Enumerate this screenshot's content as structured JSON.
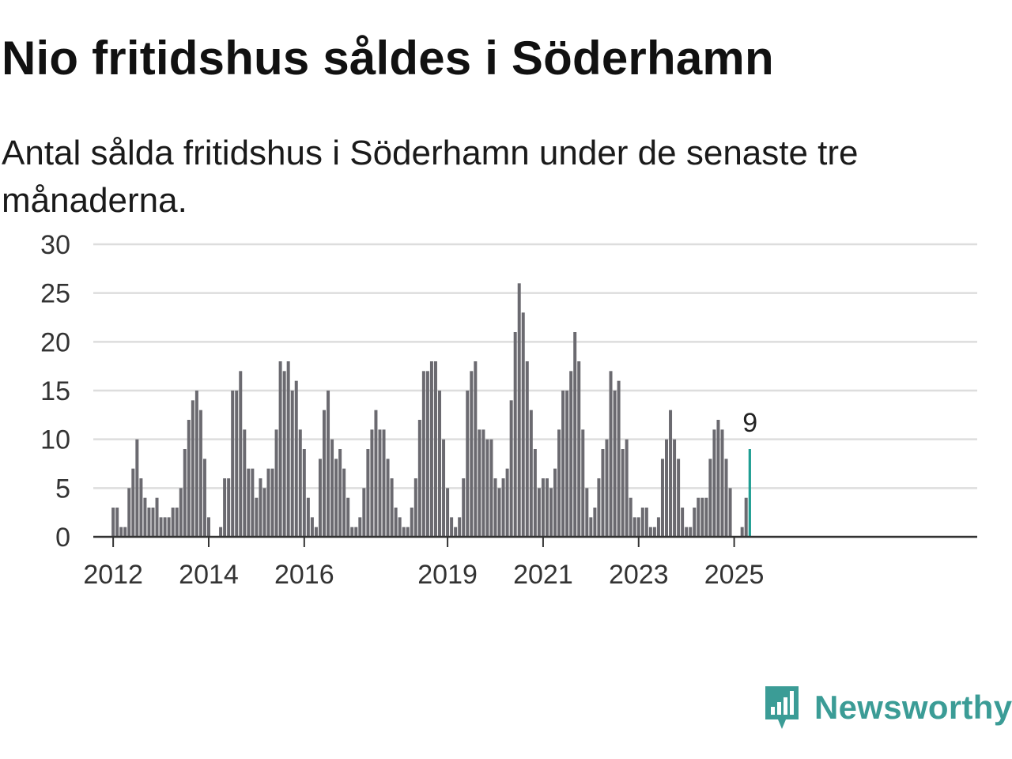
{
  "title": "Nio fritidshus såldes i Söderhamn",
  "subtitle": "Antal sålda fritidshus i Söderhamn under de senaste tre månaderna.",
  "brand": {
    "name": "Newsworthy",
    "icon": "newsworthy-logo-icon",
    "color": "#3b9c96"
  },
  "colors": {
    "bar": "#6b6a70",
    "highlight": "#1f9e93",
    "grid": "#dddddd",
    "axis": "#333333"
  },
  "chart_data": {
    "type": "bar",
    "x_start": "2011-09",
    "frequency": "monthly",
    "ylim": [
      0,
      30
    ],
    "y_ticks": [
      0,
      5,
      10,
      15,
      20,
      25,
      30
    ],
    "x_ticks": [
      "2012",
      "2014",
      "2016",
      "2019",
      "2021",
      "2023",
      "2025"
    ],
    "grid": true,
    "values": [
      0,
      0,
      0,
      0,
      3,
      3,
      1,
      1,
      5,
      7,
      10,
      6,
      4,
      3,
      3,
      4,
      2,
      2,
      2,
      3,
      3,
      5,
      9,
      12,
      14,
      15,
      13,
      8,
      2,
      0,
      0,
      1,
      6,
      6,
      15,
      15,
      17,
      11,
      7,
      7,
      4,
      6,
      5,
      7,
      7,
      11,
      18,
      17,
      18,
      15,
      16,
      11,
      9,
      4,
      2,
      1,
      8,
      13,
      15,
      10,
      8,
      9,
      7,
      4,
      1,
      1,
      2,
      5,
      9,
      11,
      13,
      11,
      11,
      8,
      6,
      3,
      2,
      1,
      1,
      3,
      6,
      12,
      17,
      17,
      18,
      18,
      15,
      10,
      5,
      2,
      1,
      2,
      6,
      15,
      17,
      18,
      11,
      11,
      10,
      10,
      6,
      5,
      6,
      7,
      14,
      21,
      26,
      23,
      18,
      13,
      9,
      5,
      6,
      6,
      5,
      7,
      11,
      15,
      15,
      17,
      21,
      18,
      11,
      5,
      2,
      3,
      6,
      9,
      10,
      17,
      15,
      16,
      9,
      10,
      4,
      2,
      2,
      3,
      3,
      1,
      1,
      2,
      8,
      10,
      13,
      10,
      8,
      3,
      1,
      1,
      3,
      4,
      4,
      4,
      8,
      11,
      12,
      11,
      8,
      5,
      0,
      0,
      1,
      4,
      9
    ],
    "highlight": {
      "label": "9",
      "value": 9
    }
  }
}
